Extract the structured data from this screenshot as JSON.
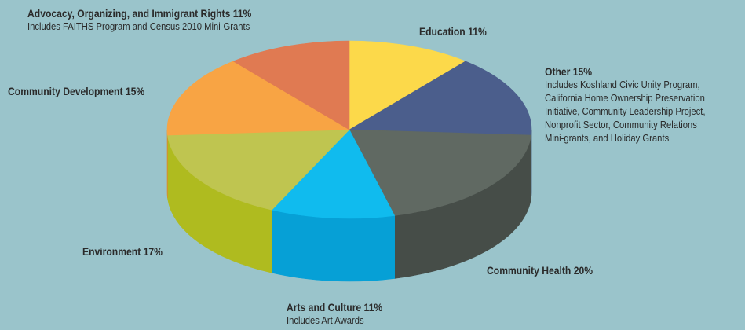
{
  "chart_data": {
    "type": "pie",
    "categories": [
      "Education",
      "Other",
      "Community Health",
      "Arts and Culture",
      "Environment",
      "Community Development",
      "Advocacy, Organizing, and Immigrant Rights"
    ],
    "values": [
      11,
      15,
      20,
      11,
      17,
      15,
      11
    ],
    "labels": [
      {
        "title": "Education 11%",
        "note": ""
      },
      {
        "title": "Other 15%",
        "note": "Includes Koshland Civic Unity Program,\nCalifornia Home Ownership Preservation\nInitiative, Community Leadership Project,\nNonprofit Sector, Community Relations\nMini-grants, and Holiday Grants"
      },
      {
        "title": "Community Health 20%",
        "note": ""
      },
      {
        "title": "Arts and Culture 11%",
        "note": "Includes Art Awards"
      },
      {
        "title": "Environment 17%",
        "note": ""
      },
      {
        "title": "Community Development 15%",
        "note": ""
      },
      {
        "title": "Advocacy, Organizing, and Immigrant Rights 11%",
        "note": "Includes FAITHS Program and Census 2010 Mini-Grants"
      }
    ],
    "colors": [
      "#fcd94a",
      "#4b5e8c",
      "#606962",
      "#10bbee",
      "#bfc550",
      "#f8a444",
      "#e07a52"
    ],
    "side_colors": [
      "#d9b62e",
      "#333f63",
      "#464d48",
      "#06a0d6",
      "#afbb1f",
      "#d98a30",
      "#c0603c"
    ],
    "start_angle": "12 o'clock",
    "direction": "clockwise",
    "style": "3d-pie",
    "legend": "none"
  }
}
